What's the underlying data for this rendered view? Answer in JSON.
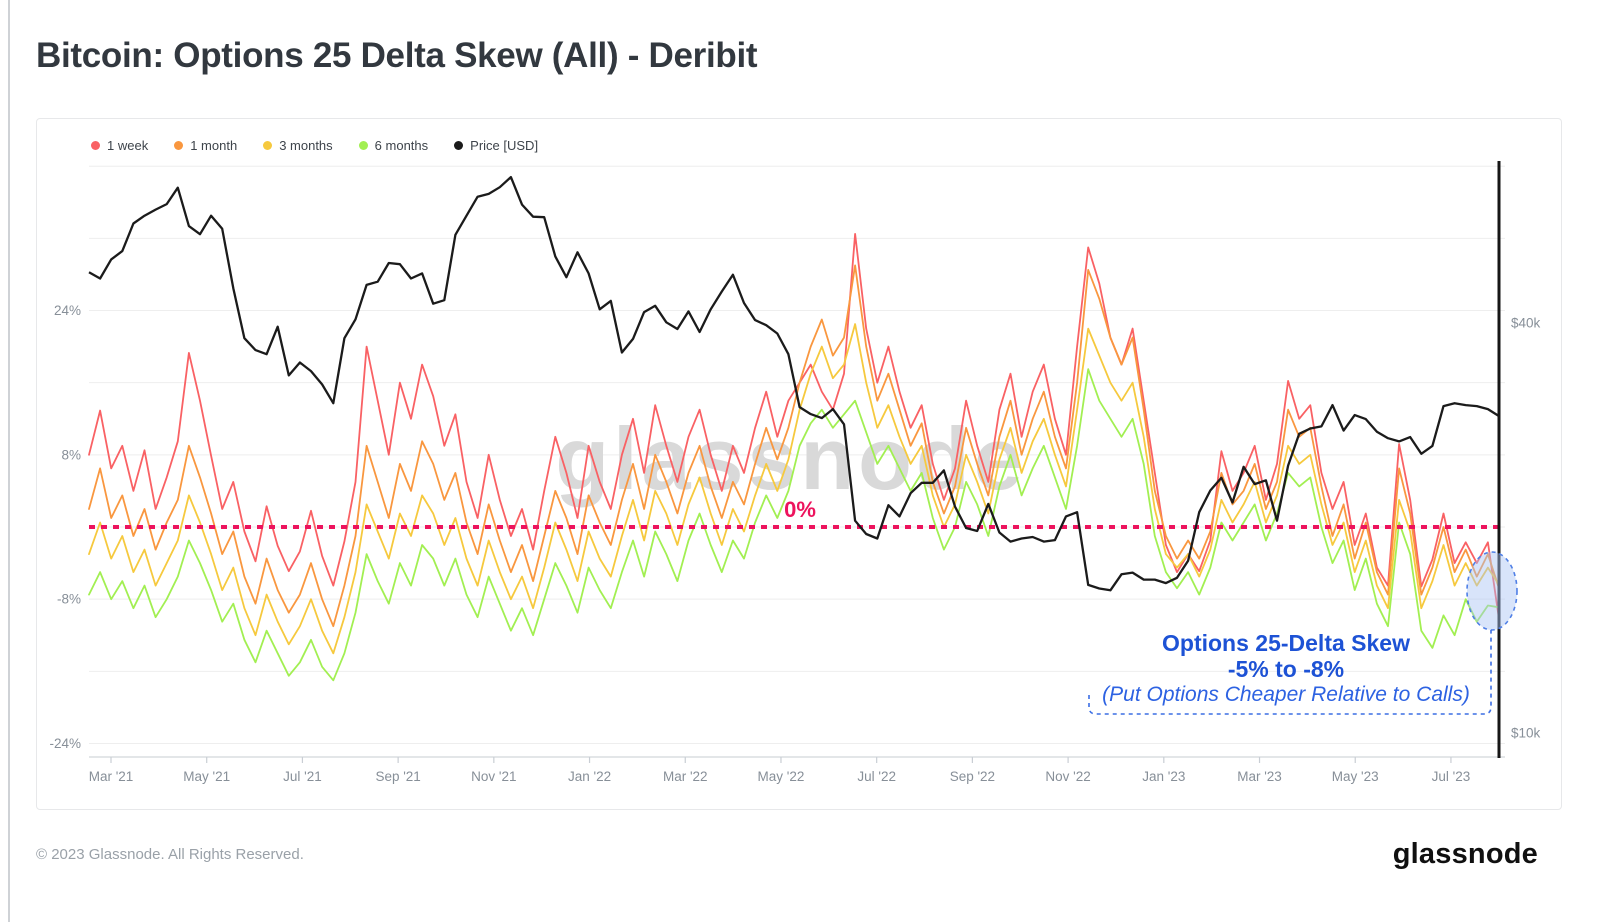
{
  "header": {
    "title": "Bitcoin: Options 25 Delta Skew (All) - Deribit"
  },
  "footer": {
    "copyright": "© 2023 Glassnode. All Rights Reserved.",
    "logo": "glassnode"
  },
  "watermark": "glassnode",
  "legend": {
    "items": [
      {
        "label": "1 week",
        "color": "#f96164"
      },
      {
        "label": "1 month",
        "color": "#f9973f"
      },
      {
        "label": "3 months",
        "color": "#f6c93e"
      },
      {
        "label": "6 months",
        "color": "#a2ef52"
      },
      {
        "label": "Price [USD]",
        "color": "#1b1b1b"
      }
    ]
  },
  "annotation": {
    "line1": "Options 25-Delta Skew",
    "line2": "-5% to -8%",
    "line3": "(Put Options Cheaper Relative to Calls)",
    "color_bold": "#1d52d5",
    "color_italic": "#2d62e2",
    "highlight_fill": "rgba(168,196,243,0.45)",
    "highlight_stroke": "#4f7fe6"
  },
  "chart_data": {
    "type": "line",
    "title": "Bitcoin: Options 25 Delta Skew (All) - Deribit",
    "x_range": [
      "2021-02-15",
      "2023-07-24"
    ],
    "sampling": "weekly",
    "grid": true,
    "legend_position": "top-left",
    "x_tick_labels": [
      "Mar '21",
      "May '21",
      "Jul '21",
      "Sep '21",
      "Nov '21",
      "Jan '22",
      "Mar '22",
      "May '22",
      "Jul '22",
      "Sep '22",
      "Nov '22",
      "Jan '23",
      "Mar '23",
      "May '23",
      "Jul '23"
    ],
    "left_axis": {
      "unit": "%",
      "tick_values": [
        24,
        8,
        -8,
        -24
      ],
      "tick_labels": [
        "24%",
        "8%",
        "-8%",
        "-24%"
      ],
      "gridline_values": [
        40,
        32,
        24,
        16,
        8,
        0,
        -8,
        -16,
        -24
      ],
      "range": [
        -25.5,
        40.5
      ]
    },
    "right_axis": {
      "unit": "USD",
      "scale": "log",
      "tick_values": [
        40000,
        10000
      ],
      "tick_labels": [
        "$40k",
        "$10k"
      ]
    },
    "zero_line": {
      "label": "0%",
      "value": 0,
      "color": "#ed135d",
      "style": "dotted"
    },
    "series": [
      {
        "name": "1 week",
        "axis": "left",
        "color": "#f96164",
        "values": [
          8,
          12.9,
          6.5,
          9,
          4,
          8.5,
          2,
          5.5,
          9.5,
          19.3,
          14,
          7.9,
          2,
          5,
          -0.5,
          -3.8,
          2.3,
          -2.1,
          -4.9,
          -2.7,
          1.8,
          -3.2,
          -6.5,
          -1.6,
          5,
          20,
          14,
          8,
          16,
          12,
          18,
          14.5,
          9,
          12.5,
          5,
          1,
          8,
          3,
          -1,
          2,
          -2.5,
          4,
          10,
          6,
          1,
          9,
          5,
          2,
          8,
          12,
          6,
          13.5,
          9,
          5,
          10,
          13,
          8,
          4,
          9,
          6,
          11,
          15,
          10,
          14,
          16,
          18,
          15,
          13,
          17,
          32.5,
          22,
          16,
          20,
          15,
          11,
          13.5,
          7,
          3,
          6.5,
          14,
          9,
          5,
          13,
          17,
          10,
          15,
          18,
          12,
          8,
          20,
          31,
          27,
          21,
          18,
          22,
          14,
          6,
          -2,
          -5,
          -3,
          -4.9,
          -1.5,
          8.4,
          4,
          6,
          9,
          3,
          7,
          16.2,
          12,
          13.5,
          6,
          2,
          5,
          -2,
          1.5,
          -4.5,
          -6.5,
          9.2,
          3,
          -6.6,
          -3.6,
          1.5,
          -4,
          -1.7,
          -4,
          -1.7,
          -10.2
        ]
      },
      {
        "name": "1 month",
        "axis": "left",
        "color": "#f9973f",
        "values": [
          2,
          6.5,
          1,
          3.5,
          -1,
          2,
          -2.5,
          0.5,
          3,
          9,
          5.5,
          1.5,
          -3,
          -0.5,
          -5.5,
          -8.5,
          -3.5,
          -7,
          -9.5,
          -7.5,
          -4,
          -8,
          -11,
          -6.5,
          -1,
          9,
          5,
          1,
          7,
          4,
          9.5,
          7,
          3,
          6,
          0.5,
          -3,
          2.5,
          -1.5,
          -5,
          -2,
          -6,
          -1,
          4,
          1,
          -3,
          3.5,
          0.5,
          -2,
          3,
          7,
          2,
          8,
          5,
          1.5,
          6,
          9,
          4.5,
          1,
          5,
          2.5,
          7,
          11,
          7.5,
          11,
          16,
          20,
          23,
          19,
          21,
          29,
          20,
          14,
          17,
          13,
          9,
          11.5,
          5,
          1.5,
          4.5,
          11,
          7,
          3.5,
          10,
          14,
          8,
          12,
          15,
          10,
          6.5,
          16,
          28.5,
          25.3,
          21,
          18,
          21,
          13,
          4,
          -1,
          -3.5,
          -1.5,
          -3.5,
          -0.5,
          6,
          2.5,
          4,
          7,
          2,
          5,
          13,
          10,
          11,
          4.5,
          -1,
          2.5,
          -3.5,
          0.5,
          -5,
          -7.5,
          6.5,
          1.5,
          -7.5,
          -4.5,
          0,
          -5,
          -2.5,
          -5.5,
          -3,
          -6.8
        ]
      },
      {
        "name": "3 months",
        "axis": "left",
        "color": "#f6c93e",
        "values": [
          -3,
          0.5,
          -3.5,
          -1,
          -5,
          -2.5,
          -6.5,
          -4,
          -1.5,
          3.5,
          0.5,
          -3,
          -7,
          -4.5,
          -9,
          -12,
          -7.5,
          -10.5,
          -13,
          -11,
          -8,
          -11.5,
          -14,
          -10,
          -5,
          2.5,
          -0.5,
          -3.5,
          1.5,
          -1,
          3.5,
          1.5,
          -2,
          1,
          -3.5,
          -6.5,
          -1.5,
          -5,
          -8,
          -5.5,
          -9,
          -4.5,
          0.5,
          -2.5,
          -6,
          -0.5,
          -3.5,
          -5.5,
          -1,
          3,
          -1.5,
          4,
          1.5,
          -2,
          2.5,
          5.5,
          1.5,
          -2,
          2,
          -0.5,
          3.5,
          7,
          4,
          7.5,
          13,
          17,
          20,
          16.5,
          18,
          22.5,
          16,
          11,
          13.5,
          10,
          7,
          9,
          3.5,
          0,
          2.5,
          8,
          5,
          1.5,
          7.5,
          11,
          6,
          9.5,
          12,
          8,
          4.5,
          13,
          22,
          19,
          16,
          14,
          16,
          10,
          2,
          -3,
          -4.5,
          -3,
          -5.5,
          -2.5,
          3,
          0.5,
          2.5,
          5,
          0.5,
          3.5,
          9,
          7,
          8,
          2.5,
          -2,
          0.5,
          -5,
          -1.5,
          -6.5,
          -9,
          3,
          -0.5,
          -9,
          -6,
          -2,
          -6.5,
          -4,
          -6.5,
          -4.5,
          -6.4
        ]
      },
      {
        "name": "6 months",
        "axis": "left",
        "color": "#a2ef52",
        "values": [
          -7.5,
          -5,
          -8,
          -6,
          -9,
          -6.5,
          -10,
          -8,
          -5.5,
          -1.5,
          -4,
          -7,
          -10.5,
          -8.5,
          -12.5,
          -15,
          -11.5,
          -14,
          -16.5,
          -15,
          -12.5,
          -15.5,
          -17,
          -14,
          -9.5,
          -3,
          -6,
          -8.5,
          -4,
          -6.5,
          -2,
          -3.5,
          -6.5,
          -3.5,
          -7.5,
          -10,
          -5.5,
          -8.5,
          -11.5,
          -9,
          -12,
          -8,
          -4,
          -6.5,
          -9.5,
          -4.5,
          -7,
          -9,
          -5,
          -1.5,
          -5.5,
          -0.5,
          -3,
          -6,
          -1.5,
          1.5,
          -2,
          -5,
          -1.5,
          -3.5,
          0.5,
          3.5,
          1,
          4,
          9,
          11.5,
          13,
          11,
          12.5,
          14,
          10.5,
          7,
          9,
          6.5,
          4,
          6,
          1,
          -2.5,
          0,
          5,
          2.5,
          -1,
          4.5,
          8,
          3.5,
          6.5,
          9,
          5.5,
          2,
          9,
          17.5,
          14,
          12,
          10,
          12,
          7,
          -1,
          -5,
          -6.8,
          -5,
          -7.5,
          -4.5,
          0.5,
          -1.5,
          0.5,
          2.5,
          -1.5,
          1.5,
          6,
          4.5,
          5.5,
          0,
          -4,
          -1.5,
          -7,
          -3.5,
          -8.5,
          -11,
          0.5,
          -3,
          -11.5,
          -13.4,
          -9.8,
          -12,
          -8,
          -10.5,
          -8.7,
          -8.9
        ]
      },
      {
        "name": "Price [USD]",
        "axis": "right",
        "unit": "thousand USD",
        "color": "#1b1b1b",
        "values": [
          47.5,
          46.5,
          49.6,
          51,
          56,
          57.5,
          58.7,
          59.8,
          63.2,
          55.5,
          54,
          57.5,
          55,
          45,
          38,
          36.5,
          36,
          39.5,
          33.5,
          35,
          34,
          32.5,
          30.5,
          38,
          40.5,
          45.5,
          46,
          49,
          48.8,
          46.5,
          47.3,
          42.7,
          43.2,
          53.9,
          57.5,
          61.3,
          61.9,
          63.3,
          65.5,
          59.7,
          57.3,
          57.2,
          50.1,
          46.7,
          50.8,
          47.3,
          41.9,
          43.1,
          36.2,
          37.9,
          41.5,
          42.4,
          40.1,
          39.2,
          41.6,
          38.8,
          41.9,
          44.5,
          47.1,
          42.8,
          40.4,
          39.7,
          38.6,
          36,
          30.1,
          29.4,
          29,
          29.9,
          28.4,
          20.5,
          19.6,
          19.3,
          21.6,
          20.8,
          22.5,
          23.3,
          23.3,
          24.3,
          21.5,
          20,
          19.8,
          21.7,
          19.7,
          19.1,
          19.3,
          19.4,
          19.1,
          19.2,
          20.8,
          21.1,
          16.5,
          16.3,
          16.2,
          17.1,
          17.2,
          16.8,
          16.8,
          16.6,
          16.9,
          17.9,
          21.1,
          22.7,
          23.7,
          21.8,
          24.6,
          23.2,
          23.5,
          20.5,
          24.7,
          27.5,
          28,
          28.2,
          30.3,
          27.8,
          29.3,
          28.9,
          27.7,
          27.1,
          26.8,
          27.2,
          25.7,
          26.4,
          30.2,
          30.5,
          30.3,
          30.2,
          29.9,
          29.2
        ]
      }
    ]
  }
}
